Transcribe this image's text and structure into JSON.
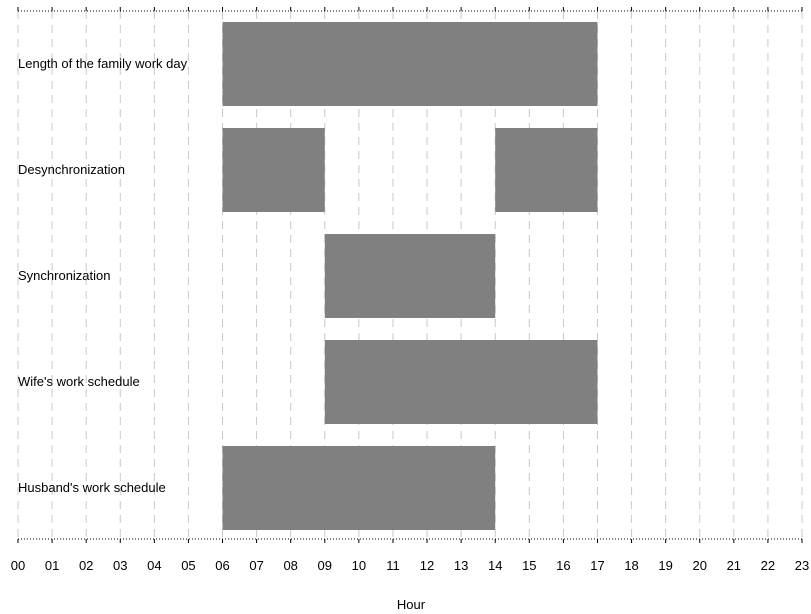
{
  "chart_data": {
    "type": "bar",
    "orientation": "horizontal-range",
    "title": "",
    "xlabel": "Hour",
    "ylabel": "",
    "xlim": [
      0,
      23
    ],
    "tick_labels": [
      "00",
      "01",
      "02",
      "03",
      "04",
      "05",
      "06",
      "07",
      "08",
      "09",
      "10",
      "11",
      "12",
      "13",
      "14",
      "15",
      "16",
      "17",
      "18",
      "19",
      "20",
      "21",
      "22",
      "23"
    ],
    "grid": "vertical dashed at each hour",
    "bar_color": "#808080",
    "grid_color": "#c8c8c8",
    "rows": [
      {
        "label": "Length of the family work day",
        "segments": [
          [
            6,
            17
          ]
        ]
      },
      {
        "label": "Desynchronization",
        "segments": [
          [
            6,
            9
          ],
          [
            14,
            17
          ]
        ]
      },
      {
        "label": "Synchronization",
        "segments": [
          [
            9,
            14
          ]
        ]
      },
      {
        "label": "Wife's work schedule",
        "segments": [
          [
            9,
            17
          ]
        ]
      },
      {
        "label": "Husband's work schedule",
        "segments": [
          [
            6,
            14
          ]
        ]
      }
    ]
  }
}
